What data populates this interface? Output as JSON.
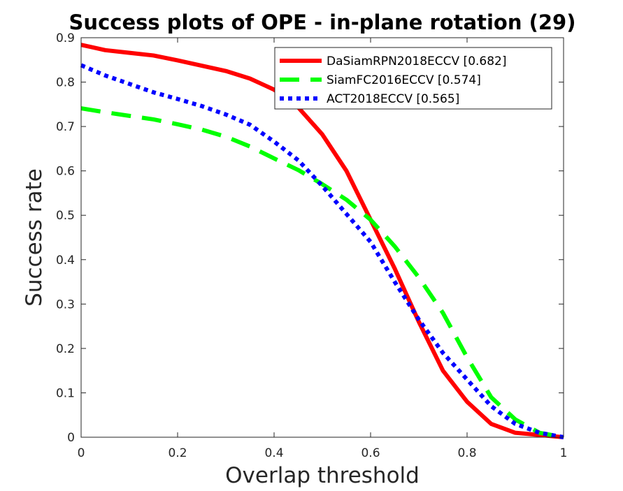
{
  "chart_data": {
    "type": "line",
    "title": "Success plots of OPE - in-plane rotation (29)",
    "xlabel": "Overlap threshold",
    "ylabel": "Success rate",
    "xlim": [
      0,
      1
    ],
    "ylim": [
      0,
      0.9
    ],
    "xticks": [
      "0",
      "0.2",
      "0.4",
      "0.6",
      "0.8",
      "1"
    ],
    "yticks": [
      "0",
      "0.1",
      "0.2",
      "0.3",
      "0.4",
      "0.5",
      "0.6",
      "0.7",
      "0.8",
      "0.9"
    ],
    "grid": false,
    "legend_position": "top-right",
    "x": [
      0,
      0.05,
      0.1,
      0.15,
      0.2,
      0.25,
      0.3,
      0.35,
      0.4,
      0.45,
      0.5,
      0.55,
      0.6,
      0.65,
      0.7,
      0.75,
      0.8,
      0.85,
      0.9,
      0.95,
      1.0
    ],
    "series": [
      {
        "name": "DaSiamRPN2018ECCV [0.682]",
        "color": "#ff0000",
        "style": "solid",
        "values": [
          0.884,
          0.872,
          0.866,
          0.86,
          0.849,
          0.837,
          0.825,
          0.808,
          0.783,
          0.743,
          0.682,
          0.6,
          0.49,
          0.38,
          0.26,
          0.15,
          0.08,
          0.03,
          0.01,
          0.005,
          0.0
        ]
      },
      {
        "name": "SiamFC2016ECCV [0.574]",
        "color": "#00ff00",
        "style": "dashed",
        "values": [
          0.741,
          0.732,
          0.724,
          0.716,
          0.705,
          0.693,
          0.677,
          0.655,
          0.628,
          0.602,
          0.57,
          0.535,
          0.49,
          0.43,
          0.36,
          0.28,
          0.18,
          0.09,
          0.04,
          0.01,
          0.0
        ]
      },
      {
        "name": "ACT2018ECCV [0.565]",
        "color": "#0000ff",
        "style": "dotted",
        "values": [
          0.838,
          0.815,
          0.796,
          0.777,
          0.762,
          0.746,
          0.727,
          0.704,
          0.666,
          0.624,
          0.566,
          0.503,
          0.44,
          0.35,
          0.265,
          0.19,
          0.13,
          0.07,
          0.03,
          0.01,
          0.0
        ]
      }
    ]
  }
}
